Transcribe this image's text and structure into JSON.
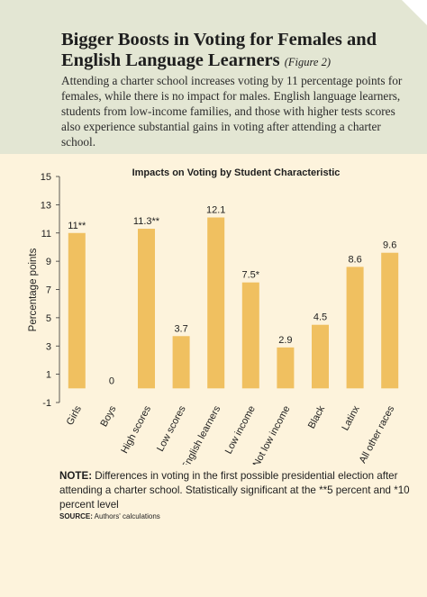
{
  "header": {
    "title": "Bigger Boosts in Voting for Females and English Language Learners",
    "figure_ref": "(Figure 2)",
    "description": "Attending a charter school increases voting by 11 percentage points for females, while there is no impact for males. English language learners, students from low-income families, and those with higher tests scores also experience substantial gains in voting after attending a charter school."
  },
  "chart_data": {
    "type": "bar",
    "title": "Impacts on Voting by Student Characteristic",
    "ylabel": "Percentage points",
    "xlabel": "",
    "ylim": [
      -1,
      15
    ],
    "yticks": [
      -1,
      1,
      3,
      5,
      7,
      9,
      11,
      13,
      15
    ],
    "grid": false,
    "categories": [
      "Girls",
      "Boys",
      "High scores",
      "Low scores",
      "English learners",
      "Low income",
      "Not low income",
      "Black",
      "Latinx",
      "All other races"
    ],
    "values": [
      11,
      0,
      11.3,
      3.7,
      12.1,
      7.5,
      2.9,
      4.5,
      8.6,
      9.6
    ],
    "data_labels": [
      "11**",
      "0",
      "11.3**",
      "3.7",
      "12.1",
      "7.5*",
      "2.9",
      "4.5",
      "8.6",
      "9.6"
    ],
    "bar_color": "#f0c060"
  },
  "footer": {
    "note_lead": "NOTE:",
    "note_text": " Differences in voting in the first possible presidential election after attending a charter school. Statistically significant at the **5 percent and *10 percent level",
    "source_lead": "SOURCE:",
    "source_text": " Authors' calculations"
  },
  "colors": {
    "header_bg": "#e3e6d3",
    "panel_bg": "#fdf3dc"
  }
}
